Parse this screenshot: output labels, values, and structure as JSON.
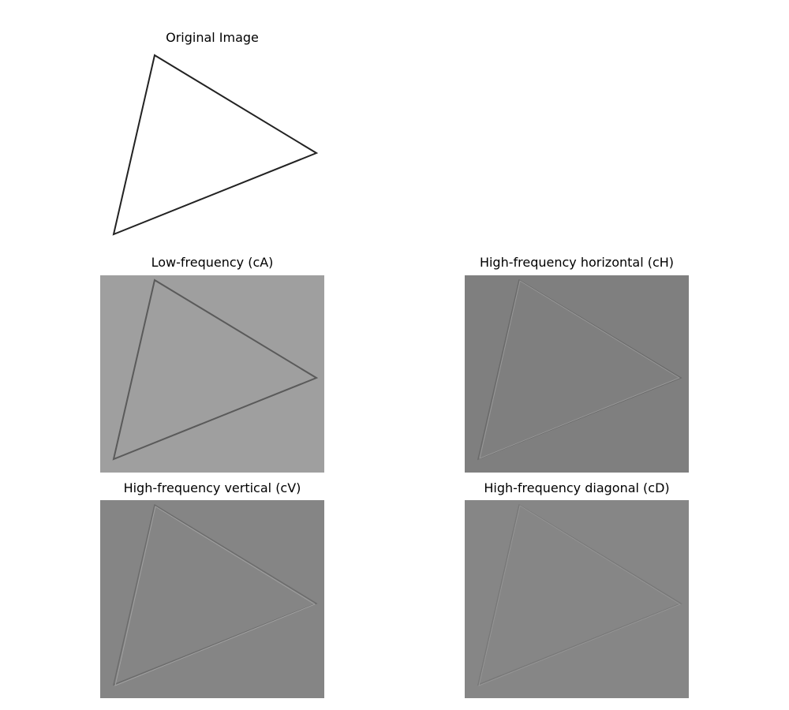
{
  "figure": {
    "panels": [
      {
        "id": "original",
        "title": "Original Image",
        "background": "#ffffff",
        "stroke": "#222222",
        "highlight": null
      },
      {
        "id": "cA",
        "title": "Low-frequency (cA)",
        "background": "#9f9f9f",
        "stroke": "#5a5a5a",
        "highlight": null
      },
      {
        "id": "cH",
        "title": "High-frequency horizontal (cH)",
        "background": "#7f7f7f",
        "stroke": "#6a6a6a",
        "highlight": "#989898"
      },
      {
        "id": "cV",
        "title": "High-frequency vertical (cV)",
        "background": "#858585",
        "stroke": "#6c6c6c",
        "highlight": "#a0a0a0"
      },
      {
        "id": "cD",
        "title": "High-frequency diagonal (cD)",
        "background": "#868686",
        "stroke": "#787878",
        "highlight": "#959595"
      }
    ]
  }
}
